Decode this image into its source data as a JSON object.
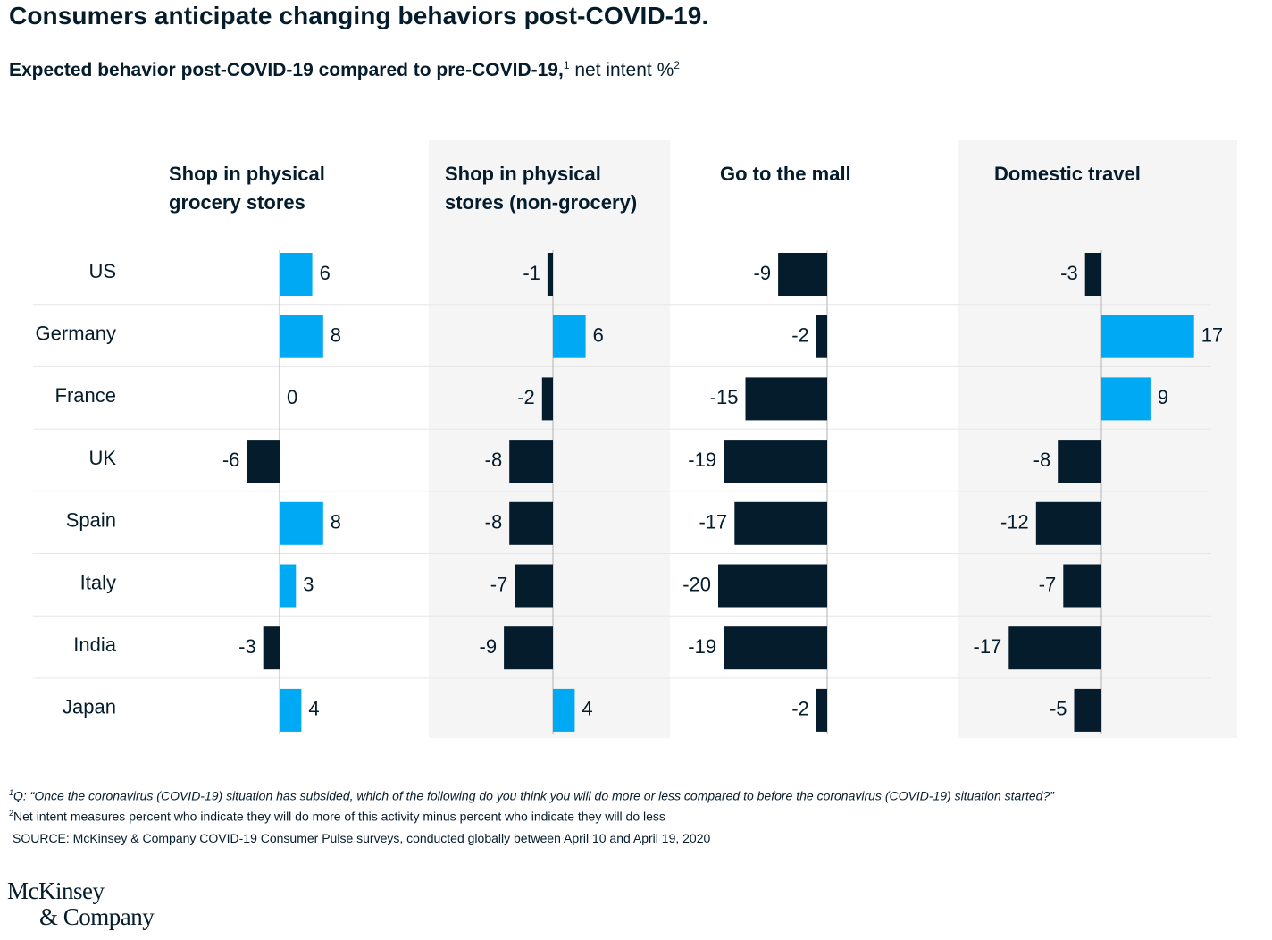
{
  "title": "Consumers anticipate changing behaviors post-COVID-19.",
  "subtitle": {
    "bold_text": "Expected behavior post-COVID-19 compared to pre-COVID-19,",
    "sup1": "1",
    "rest_text": " net intent %",
    "sup2": "2"
  },
  "colors": {
    "positive": "#00a9f4",
    "negative": "#051c2c",
    "panel_shade": "#f5f5f5",
    "row_divider": "#e6e6e6",
    "axis": "#bdbdbd"
  },
  "chart_data": {
    "type": "bar",
    "orientation": "horizontal",
    "categories": [
      "US",
      "Germany",
      "France",
      "UK",
      "Spain",
      "Italy",
      "India",
      "Japan"
    ],
    "series": [
      {
        "name": "Shop in physical grocery stores",
        "name_lines": [
          "Shop in physical",
          "grocery stores"
        ],
        "values": [
          6,
          8,
          0,
          -6,
          8,
          3,
          -3,
          4
        ]
      },
      {
        "name": "Shop in physical stores (non-grocery)",
        "name_lines": [
          "Shop in physical",
          "stores (non-grocery)"
        ],
        "values": [
          -1,
          6,
          -2,
          -8,
          -8,
          -7,
          -9,
          4
        ]
      },
      {
        "name": "Go to the mall",
        "name_lines": [
          "Go to the mall"
        ],
        "values": [
          -9,
          -2,
          -15,
          -19,
          -17,
          -20,
          -19,
          -2
        ]
      },
      {
        "name": "Domestic travel",
        "name_lines": [
          "Domestic travel"
        ],
        "values": [
          -3,
          17,
          9,
          -8,
          -12,
          -7,
          -17,
          -5
        ]
      }
    ]
  },
  "footnotes": {
    "f1_sup": "1",
    "f1": "Q: “Once the coronavirus (COVID-19) situation has subsided, which of the following do you think you will do more or less compared to before the coronavirus (COVID-19) situation started?”",
    "f2_sup": "2",
    "f2": "Net intent measures percent who indicate they will do more of this activity minus percent who indicate they will do less",
    "source": "SOURCE: McKinsey & Company COVID-19 Consumer Pulse surveys, conducted globally between April 10 and April 19, 2020"
  },
  "logo": {
    "line1": "McKinsey",
    "line2": "& Company"
  }
}
